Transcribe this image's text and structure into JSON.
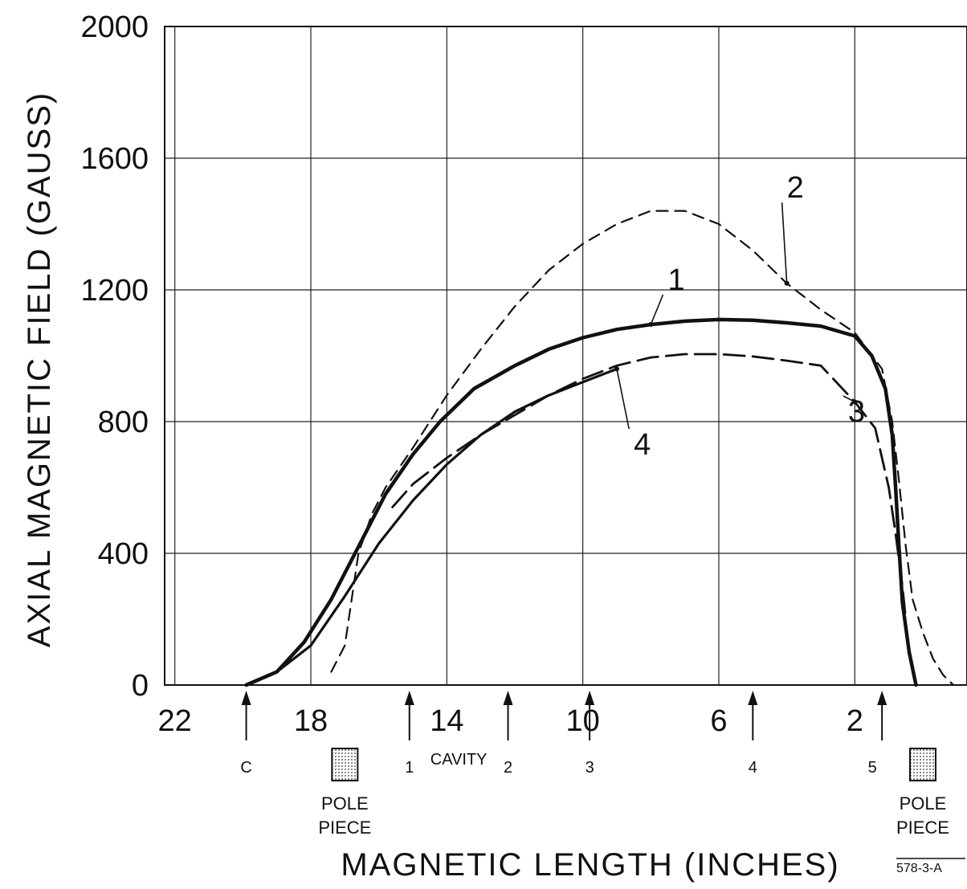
{
  "chart_data": {
    "type": "line",
    "title": "",
    "xlabel": "MAGNETIC LENGTH (INCHES)",
    "ylabel": "AXIAL MAGNETIC FIELD (GAUSS)",
    "xlim": [
      22.3,
      -1.3
    ],
    "ylim": [
      0,
      2000
    ],
    "x_reversed": true,
    "x_ticks": [
      22,
      18,
      14,
      10,
      6,
      2
    ],
    "y_ticks": [
      0,
      400,
      800,
      1200,
      1600,
      2000
    ],
    "x_tick_labels": [
      "22",
      "18",
      "14",
      "10",
      "6",
      "2"
    ],
    "y_tick_labels": [
      "0",
      "400",
      "800",
      "1200",
      "1600",
      "2000"
    ],
    "grid": true,
    "series": [
      {
        "name": "1",
        "style": "solid-thick",
        "color": "#111111",
        "x": [
          19.9,
          19.0,
          18.2,
          17.4,
          16.6,
          15.8,
          15.0,
          14.2,
          13.2,
          12.0,
          11.0,
          10.0,
          9.0,
          8.0,
          7.0,
          6.0,
          5.0,
          4.0,
          3.0,
          2.0,
          1.5,
          1.1,
          0.9,
          0.8,
          0.7,
          0.6,
          0.4,
          0.2
        ],
        "y": [
          0,
          40,
          130,
          260,
          420,
          580,
          700,
          800,
          900,
          970,
          1020,
          1055,
          1080,
          1095,
          1105,
          1110,
          1108,
          1100,
          1090,
          1060,
          1000,
          900,
          760,
          600,
          420,
          250,
          100,
          0
        ]
      },
      {
        "name": "2",
        "style": "dashed",
        "color": "#111111",
        "x": [
          17.4,
          17.0,
          16.6,
          16.2,
          15.8,
          15.0,
          14.0,
          13.0,
          12.0,
          11.0,
          10.0,
          9.0,
          8.0,
          7.0,
          6.0,
          5.0,
          4.0,
          3.0,
          2.0,
          1.2,
          0.9,
          0.7,
          0.5,
          0.3,
          0.0,
          -0.3,
          -0.6,
          -0.9
        ],
        "y": [
          40,
          120,
          400,
          520,
          600,
          720,
          880,
          1020,
          1150,
          1260,
          1340,
          1400,
          1440,
          1440,
          1400,
          1320,
          1220,
          1140,
          1070,
          960,
          800,
          620,
          420,
          260,
          160,
          80,
          30,
          0
        ]
      },
      {
        "name": "3",
        "style": "long-dash",
        "color": "#111111",
        "x": [
          15.6,
          15.0,
          14.0,
          13.0,
          12.0,
          11.0,
          10.0,
          9.0,
          8.0,
          7.0,
          6.0,
          5.0,
          4.0,
          3.0,
          2.0,
          1.4,
          1.0,
          0.8,
          0.6,
          0.5
        ],
        "y": [
          540,
          610,
          690,
          760,
          820,
          880,
          930,
          970,
          995,
          1005,
          1005,
          998,
          985,
          970,
          860,
          780,
          600,
          460,
          300,
          200
        ]
      },
      {
        "name": "4",
        "style": "solid",
        "color": "#111111",
        "x": [
          19.9,
          19.0,
          18.0,
          17.0,
          16.0,
          15.0,
          14.0,
          13.0,
          12.0,
          11.0,
          10.0,
          9.0
        ],
        "y": [
          0,
          40,
          120,
          270,
          430,
          560,
          670,
          760,
          830,
          880,
          920,
          960
        ]
      }
    ],
    "series_label_positions": [
      {
        "label": "1",
        "x": 7.5,
        "y": 1200
      },
      {
        "label": "2",
        "x": 4.0,
        "y": 1480
      },
      {
        "label": "3",
        "x": 2.2,
        "y": 800
      },
      {
        "label": "4",
        "x": 8.5,
        "y": 700
      }
    ],
    "position_markers": [
      {
        "label": "C",
        "x": 19.9
      },
      {
        "label": "1",
        "x": 15.1
      },
      {
        "label": "2",
        "x": 12.2
      },
      {
        "label": "3",
        "x": 9.8
      },
      {
        "label": "4",
        "x": 5.0
      },
      {
        "label": "5",
        "x": 1.2
      }
    ],
    "cavity_label": "CAVITY",
    "pole_pieces": [
      {
        "label_line1": "POLE",
        "label_line2": "PIECE",
        "x": 17.0
      },
      {
        "label_line1": "POLE",
        "label_line2": "PIECE",
        "x": 0.0
      }
    ],
    "figure_id": "578-3-A"
  }
}
